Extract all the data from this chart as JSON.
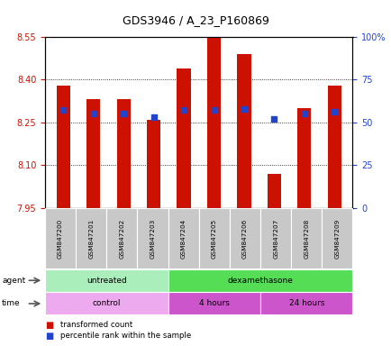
{
  "title": "GDS3946 / A_23_P160869",
  "samples": [
    "GSM847200",
    "GSM847201",
    "GSM847202",
    "GSM847203",
    "GSM847204",
    "GSM847205",
    "GSM847206",
    "GSM847207",
    "GSM847208",
    "GSM847209"
  ],
  "transformed_count": [
    8.38,
    8.33,
    8.33,
    8.26,
    8.44,
    8.55,
    8.49,
    8.07,
    8.3,
    8.38
  ],
  "percentile_rank": [
    57,
    55,
    55,
    53,
    57,
    57,
    58,
    52,
    55,
    56
  ],
  "ymin": 7.95,
  "ymax": 8.55,
  "yticks": [
    7.95,
    8.1,
    8.25,
    8.4,
    8.55
  ],
  "right_yticks": [
    0,
    25,
    50,
    75,
    100
  ],
  "right_ytick_labels": [
    "0",
    "25",
    "50",
    "75",
    "100%"
  ],
  "bar_color": "#cc1100",
  "dot_color": "#2244cc",
  "agent_groups": [
    {
      "label": "untreated",
      "start": 0,
      "end": 3,
      "color": "#aaeebb"
    },
    {
      "label": "dexamethasone",
      "start": 4,
      "end": 9,
      "color": "#55dd55"
    }
  ],
  "time_groups": [
    {
      "label": "control",
      "start": 0,
      "end": 3,
      "color": "#eeaaee"
    },
    {
      "label": "4 hours",
      "start": 4,
      "end": 6,
      "color": "#cc55cc"
    },
    {
      "label": "24 hours",
      "start": 7,
      "end": 9,
      "color": "#cc55cc"
    }
  ],
  "bar_width": 0.45,
  "ax_bg": "#ffffff",
  "sample_box_color": "#c8c8c8",
  "grid_color": "#000000"
}
